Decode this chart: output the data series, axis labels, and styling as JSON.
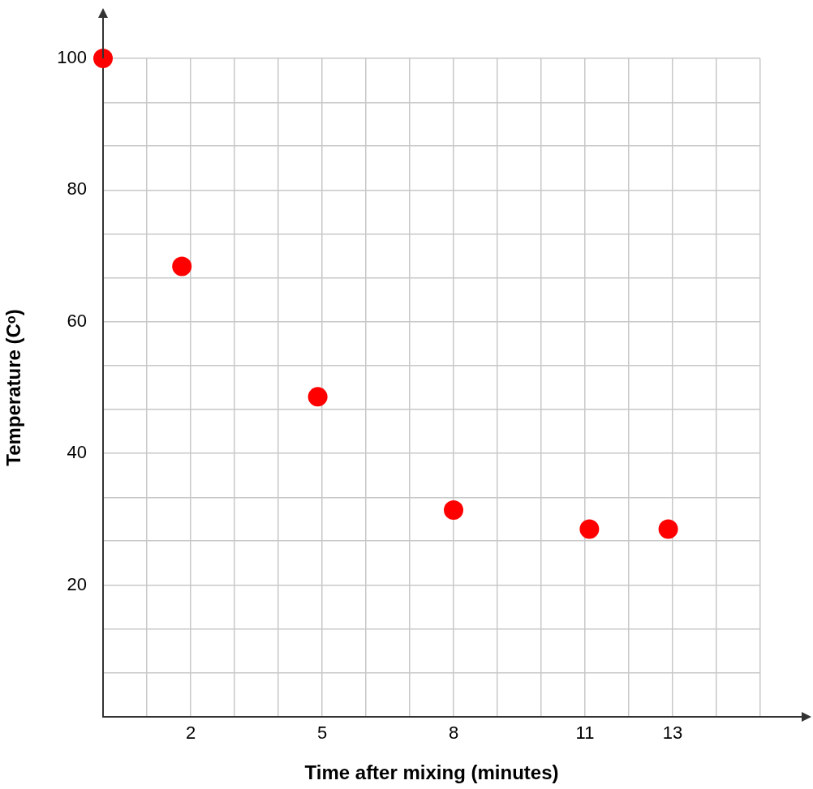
{
  "chart_data": {
    "type": "scatter",
    "xlabel": "Time after mixing (minutes)",
    "ylabel": "Temperature (Cᵒ)",
    "x": [
      0,
      1.8,
      4.9,
      8,
      11.1,
      12.9
    ],
    "series": [
      {
        "color": "#ff0000",
        "values": [
          100,
          68.4,
          48.6,
          31.4,
          28.5,
          28.5
        ]
      }
    ],
    "xlim": [
      0,
      15
    ],
    "xticks": [
      {
        "value": 1,
        "label": null
      },
      2,
      {
        "value": 3,
        "label": null
      },
      {
        "value": 4,
        "label": null
      },
      5,
      {
        "value": 6,
        "label": null
      },
      {
        "value": 7,
        "label": null
      },
      8,
      {
        "value": 9,
        "label": null
      },
      {
        "value": 10,
        "label": null
      },
      11,
      {
        "value": 12,
        "label": null
      },
      13,
      {
        "value": 14,
        "label": null
      },
      {
        "value": 15,
        "label": null
      }
    ],
    "ylim": [
      0,
      100
    ],
    "yticks": [
      {
        "value": 6.7,
        "label": null
      },
      {
        "value": 13.3,
        "label": null
      },
      20,
      {
        "value": 26.7,
        "label": null
      },
      {
        "value": 33.3,
        "label": null
      },
      40,
      {
        "value": 46.7,
        "label": null
      },
      {
        "value": 53.3,
        "label": null
      },
      60,
      {
        "value": 66.7,
        "label": null
      },
      {
        "value": 73.3,
        "label": null
      },
      80,
      {
        "value": 86.7,
        "label": null
      },
      {
        "value": 93.3,
        "label": null
      },
      100
    ],
    "grid": true,
    "legend": false,
    "marker": "circle"
  }
}
